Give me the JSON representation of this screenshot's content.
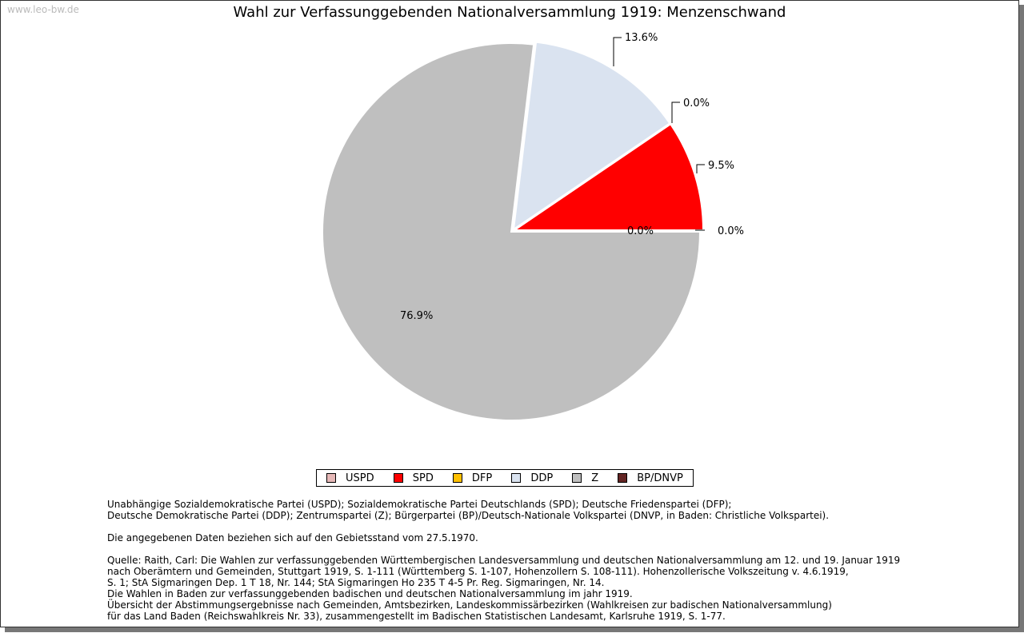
{
  "watermark": "www.leo-bw.de",
  "chart_data": {
    "type": "pie",
    "title": "Wahl zur Verfassunggebenden Nationalversammlung 1919: Menzenschwand",
    "slices": [
      {
        "name": "USPD",
        "value": 0.0,
        "label": "0.0%",
        "color": "#e6b8b7"
      },
      {
        "name": "SPD",
        "value": 9.5,
        "label": "9.5%",
        "color": "#ff0000"
      },
      {
        "name": "DFP",
        "value": 0.0,
        "label": "0.0%",
        "color": "#ffc000"
      },
      {
        "name": "DDP",
        "value": 13.6,
        "label": "13.6%",
        "color": "#dae3f0"
      },
      {
        "name": "Z",
        "value": 76.9,
        "label": "76.9%",
        "color": "#bfbfbf"
      },
      {
        "name": "BP/DNVP",
        "value": 0.0,
        "label": "0.0%",
        "color": "#632523"
      }
    ],
    "legend_placement": "bottom"
  },
  "notes": {
    "parties": [
      "Unabhängige Sozialdemokratische Partei (USPD); Sozialdemokratische Partei Deutschlands (SPD); Deutsche Friedenspartei (DFP);",
      "Deutsche Demokratische Partei (DDP); Zentrumspartei (Z); Bürgerpartei (BP)/Deutsch-Nationale Volkspartei (DNVP, in Baden: Christliche Volkspartei)."
    ],
    "territory": [
      "Die angegebenen Daten beziehen sich auf den Gebietsstand vom 27.5.1970."
    ],
    "source": [
      "Quelle: Raith, Carl: Die Wahlen zur verfassunggebenden Württembergischen Landesversammlung und deutschen Nationalversammlung am 12. und 19. Januar 1919",
      "nach Oberämtern und Gemeinden, Stuttgart 1919, S. 1-111 (Württemberg S. 1-107, Hohenzollern S. 108-111). Hohenzollerische Volkszeitung v. 4.6.1919,",
      "S. 1; StA Sigmaringen Dep. 1 T 18, Nr. 144; StA Sigmaringen Ho 235 T 4-5 Pr. Reg. Sigmaringen, Nr. 14.",
      "Die Wahlen in Baden zur verfassunggebenden badischen und deutschen Nationalversammlung im jahr 1919.",
      "Übersicht der Abstimmungsergebnisse nach Gemeinden, Amtsbezirken, Landeskommissärbezirken (Wahlkreisen zur badischen Nationalversammlung)",
      "für das Land Baden (Reichswahlkreis Nr. 33), zusammengestellt im Badischen Statistischen Landesamt, Karlsruhe 1919, S. 1-77."
    ]
  }
}
